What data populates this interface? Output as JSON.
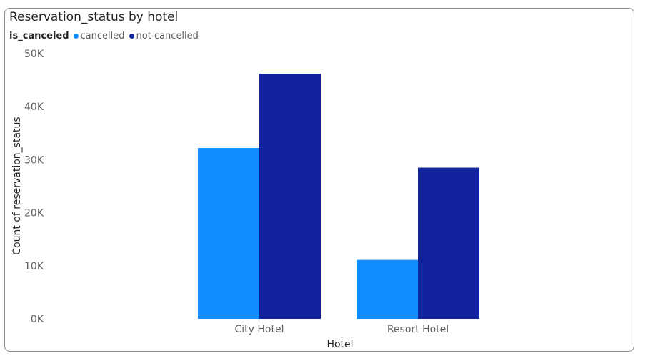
{
  "chart_data": {
    "type": "bar",
    "title": "Reservation_status by hotel",
    "legend_title": "is_canceled",
    "xlabel": "Hotel",
    "ylabel": "Count of reservation_status",
    "categories": [
      "City Hotel",
      "Resort Hotel"
    ],
    "series": [
      {
        "name": "cancelled",
        "color": "#118dff",
        "values": [
          32200,
          11100
        ]
      },
      {
        "name": "not cancelled",
        "color": "#12239e",
        "values": [
          46200,
          28500
        ]
      }
    ],
    "ylim": [
      0,
      50000
    ],
    "yticks": [
      {
        "value": 0,
        "label": "0K"
      },
      {
        "value": 10000,
        "label": "10K"
      },
      {
        "value": 20000,
        "label": "20K"
      },
      {
        "value": 30000,
        "label": "30K"
      },
      {
        "value": 40000,
        "label": "40K"
      },
      {
        "value": 50000,
        "label": "50K"
      }
    ],
    "grid": false,
    "legend_position": "top-left"
  }
}
